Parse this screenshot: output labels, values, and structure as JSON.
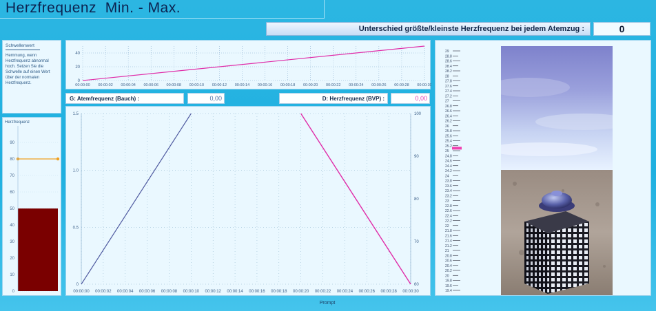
{
  "window": {
    "title": "Herzfrequenz  Min. - Max.",
    "prompt": "Prompt"
  },
  "difference": {
    "label": "Unterschied größte/kleinste Herzfrequenz bei jedem Atemzug :",
    "value": "0"
  },
  "threshold": {
    "title": "Schwellenwert",
    "text": "Hemmung, wenn Herzfrequenz abnormal hoch. Setzen Sie die Schwelle auf einen Wert über der normalen Herzfrequenz."
  },
  "readouts": {
    "g_label": "G: Atemfrequenz  (Bauch) :",
    "g_value": "0,00",
    "d_label": "D: Herzfrequenz (BVP) :",
    "d_value": "0,00"
  },
  "colors": {
    "bar_fill": "#7a0000",
    "threshold_line": "#f0a020",
    "magenta": "#e02ca8",
    "blue_line": "#4f5aa0",
    "marker": "#f040b0"
  },
  "chart_data": [
    {
      "type": "bar",
      "title": "Herzfrequenz",
      "categories": [
        ""
      ],
      "values": [
        50
      ],
      "ylim": [
        0,
        100
      ],
      "yticks": [
        "0",
        "10",
        "20",
        "30",
        "40",
        "50",
        "60",
        "70",
        "80",
        "90"
      ],
      "threshold": 80
    },
    {
      "type": "line",
      "x": [
        "00:00",
        "00:02",
        "00:04",
        "00:06",
        "00:08",
        "00:10",
        "00:12",
        "00:14",
        "00:16",
        "00:18",
        "00:20",
        "00:22",
        "00:24",
        "00:26",
        "00:28",
        "00:30"
      ],
      "xlabels": [
        "00:00:00",
        "00:00:02",
        "00:00:04",
        "00:00:06",
        "00:00:08",
        "00:00:10",
        "00:00:12",
        "00:00:14",
        "00:00:16",
        "00:00:18",
        "00:00:20",
        "00:00:22",
        "00:00:24",
        "00:00:26",
        "00:00:28",
        "00:00:30"
      ],
      "series": [
        {
          "values": [
            [
              0,
              0
            ],
            [
              30,
              50
            ]
          ]
        }
      ],
      "ylim": [
        0,
        50
      ],
      "yticks": [
        "0",
        "20",
        "40"
      ]
    },
    {
      "type": "line",
      "xlabels": [
        "00:00:00",
        "00:00:02",
        "00:00:04",
        "00:00:06",
        "00:00:08",
        "00:00:10",
        "00:00:12",
        "00:00:14",
        "00:00:16",
        "00:00:18",
        "00:00:20",
        "00:00:22",
        "00:00:24",
        "00:00:26",
        "00:00:28",
        "00:00:30"
      ],
      "series": [
        {
          "axis": "left",
          "values": [
            [
              0,
              0
            ],
            [
              10,
              1.5
            ]
          ]
        },
        {
          "axis": "right",
          "values": [
            [
              20,
              100
            ],
            [
              30,
              60
            ]
          ]
        }
      ],
      "ylim_left": [
        0,
        1.5
      ],
      "yticks_left": [
        "0",
        "0.5",
        "1.0",
        "1.5"
      ],
      "ylim_right": [
        60,
        100
      ],
      "yticks_right": [
        "60",
        "70",
        "80",
        "90",
        "100"
      ],
      "xlim": [
        0,
        30
      ]
    }
  ],
  "scale": {
    "labels": [
      "29",
      "28.8",
      "28.6",
      "28.4",
      "28.2",
      "28",
      "27.8",
      "27.6",
      "27.4",
      "27.2",
      "27",
      "26.8",
      "26.6",
      "26.4",
      "26.2",
      "26",
      "25.8",
      "25.6",
      "25.4",
      "25.2",
      "25",
      "24.8",
      "24.6",
      "24.4",
      "24.2",
      "24",
      "23.8",
      "23.6",
      "23.4",
      "23.2",
      "23",
      "22.8",
      "22.6",
      "22.4",
      "22.2",
      "22",
      "21.8",
      "21.6",
      "21.4",
      "21.2",
      "21",
      "20.8",
      "20.6",
      "20.4",
      "20.2",
      "20",
      "19.8",
      "19.6",
      "19.4"
    ],
    "marker_value": 25.1
  }
}
